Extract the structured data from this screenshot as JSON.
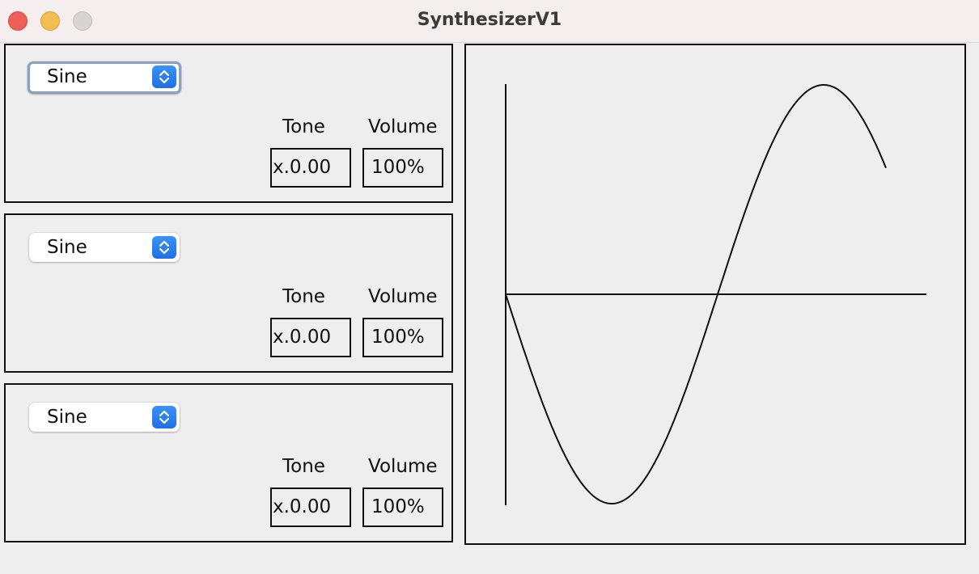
{
  "window": {
    "title": "SynthesizerV1"
  },
  "oscillators": [
    {
      "waveform": "Sine",
      "tone_label": "Tone",
      "tone_value": "x.0.00",
      "volume_label": "Volume",
      "volume_value": "100%"
    },
    {
      "waveform": "Sine",
      "tone_label": "Tone",
      "tone_value": "x.0.00",
      "volume_label": "Volume",
      "volume_value": "100%"
    },
    {
      "waveform": "Sine",
      "tone_label": "Tone",
      "tone_value": "x.0.00",
      "volume_label": "Volume",
      "volume_value": "100%"
    }
  ],
  "scope": {
    "waveform": "sine",
    "cycles": 1.0,
    "phase_inverted": true
  },
  "colors": {
    "accent": "#1f6fe6",
    "close": "#ee5f57",
    "minimize": "#f4bd4f",
    "zoom": "#d8d4d4",
    "line": "#111111"
  }
}
